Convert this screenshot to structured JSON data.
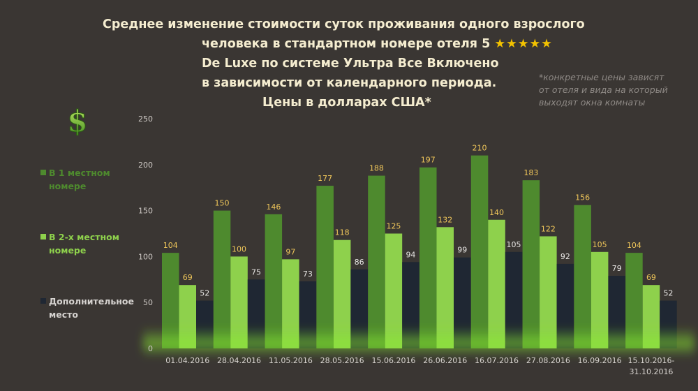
{
  "title": {
    "line1": "Среднее изменение стоимости суток проживания одного взрослого",
    "line2": "человека в стандартном номере отеля 5",
    "stars": "★★★★★",
    "line3": "De Luxe по системе Ультра Все Включено",
    "line4": "в зависимости от календарного периода.",
    "line5": "Цены в долларах США*"
  },
  "note": {
    "line1": "*конкретные цены зависят",
    "line2": "от отеля и вида на который",
    "line3": "выходят окна комнаты"
  },
  "icon": "dollar-icon",
  "legend": [
    {
      "line1": "В 1 местном",
      "line2": "номере",
      "color": "#4e8a2e"
    },
    {
      "line1": "В 2-х местном",
      "line2": "номере",
      "color": "#8ed14c"
    },
    {
      "line1": "Дополнительное",
      "line2": "место",
      "color": "#1f2733"
    }
  ],
  "chart_data": {
    "type": "bar",
    "categories": [
      [
        "01.04.2016"
      ],
      [
        "28.04.2016"
      ],
      [
        "11.05.2016"
      ],
      [
        "28.05.2016"
      ],
      [
        "15.06.2016"
      ],
      [
        "26.06.2016"
      ],
      [
        "16.07.2016"
      ],
      [
        "27.08.2016"
      ],
      [
        "16.09.2016"
      ],
      [
        "15.10.2016-",
        "31.10.2016"
      ]
    ],
    "series": [
      {
        "name": "В 1 местном номере",
        "color": "#4e8a2e",
        "label_color": "#f0c75a",
        "values": [
          104,
          150,
          146,
          177,
          188,
          197,
          210,
          183,
          156,
          104
        ]
      },
      {
        "name": "В 2-х местном номере",
        "color": "#8ed14c",
        "label_color": "#f0c75a",
        "values": [
          69,
          100,
          97,
          118,
          125,
          132,
          140,
          122,
          105,
          69
        ]
      },
      {
        "name": "Дополнительное место",
        "color": "#1f2733",
        "label_color": "#e8e6e4",
        "values": [
          52,
          75,
          73,
          86,
          94,
          99,
          105,
          92,
          79,
          52
        ]
      }
    ],
    "yticks": [
      0,
      50,
      100,
      150,
      200,
      250
    ],
    "ylim": [
      0,
      250
    ],
    "grid": false,
    "legend_position": "left"
  }
}
